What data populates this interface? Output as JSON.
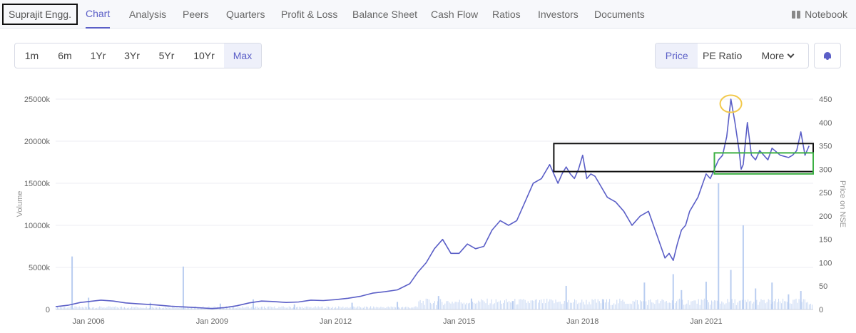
{
  "nav": {
    "company": "Suprajit Engg.",
    "tabs": [
      "Chart",
      "Analysis",
      "Peers",
      "Quarters",
      "Profit & Loss",
      "Balance Sheet",
      "Cash Flow",
      "Ratios",
      "Investors",
      "Documents"
    ],
    "active_tab": "Chart",
    "notebook_label": "Notebook"
  },
  "ranges": {
    "options": [
      "1m",
      "6m",
      "1Yr",
      "3Yr",
      "5Yr",
      "10Yr",
      "Max"
    ],
    "selected": "Max"
  },
  "metrics": {
    "price_label": "Price",
    "pe_label": "PE Ratio",
    "more_label": "More",
    "selected": "Price"
  },
  "icons": {
    "notebook": "book-icon",
    "more": "chevron-down-icon",
    "alert": "bell-icon"
  },
  "colors": {
    "accent": "#5b5fc7",
    "price_line": "#5b5fc7",
    "volume_bars": "#b9cdf0",
    "highlight_black": "#111111",
    "highlight_green": "#3cb043",
    "highlight_yellow": "#f2c94c"
  },
  "chart_data": {
    "type": "line",
    "xlabel": "",
    "ylabel_left": "Volume",
    "ylabel_right": "Price on NSE",
    "x_ticks": [
      "Jan 2006",
      "Jan 2009",
      "Jan 2012",
      "Jan 2015",
      "Jan 2018",
      "Jan 2021"
    ],
    "x_range": [
      2005.2,
      2023.6
    ],
    "volume_axis": {
      "ticks": [
        "0",
        "5000k",
        "10000k",
        "15000k",
        "20000k",
        "25000k"
      ],
      "ylim": [
        0,
        25000
      ]
    },
    "price_axis": {
      "ticks": [
        "0",
        "50",
        "100",
        "150",
        "200",
        "250",
        "300",
        "350",
        "400",
        "450"
      ],
      "ylim": [
        0,
        450
      ]
    },
    "grid": true,
    "legend": "none",
    "series": [
      {
        "axis": "right",
        "x": [
          2005.2,
          2005.5,
          2005.8,
          2006.0,
          2006.3,
          2006.6,
          2006.9,
          2007.2,
          2007.6,
          2008.0,
          2008.4,
          2008.8,
          2009.0,
          2009.3,
          2009.6,
          2009.9,
          2010.2,
          2010.5,
          2010.8,
          2011.1,
          2011.4,
          2011.7,
          2012.0,
          2012.3,
          2012.6,
          2012.9,
          2013.2,
          2013.5,
          2013.8,
          2014.0,
          2014.2,
          2014.4,
          2014.6,
          2014.8,
          2015.0,
          2015.2,
          2015.4,
          2015.6,
          2015.8,
          2016.0,
          2016.2,
          2016.4,
          2016.6,
          2016.8,
          2017.0,
          2017.2,
          2017.4,
          2017.5,
          2017.6,
          2017.7,
          2017.8,
          2017.9,
          2018.0,
          2018.1,
          2018.2,
          2018.3,
          2018.4,
          2018.6,
          2018.8,
          2019.0,
          2019.2,
          2019.4,
          2019.6,
          2019.8,
          2020.0,
          2020.1,
          2020.2,
          2020.3,
          2020.4,
          2020.5,
          2020.6,
          2020.8,
          2021.0,
          2021.1,
          2021.2,
          2021.3,
          2021.4,
          2021.5,
          2021.6,
          2021.7,
          2021.8,
          2021.85,
          2021.9,
          2022.0,
          2022.1,
          2022.2,
          2022.3,
          2022.4,
          2022.5,
          2022.6,
          2022.8,
          2023.0,
          2023.1,
          2023.2,
          2023.3,
          2023.4,
          2023.5
        ],
        "values": [
          6,
          9,
          15,
          17,
          20,
          18,
          14,
          12,
          10,
          7,
          5,
          3,
          2,
          4,
          8,
          14,
          18,
          17,
          15,
          16,
          20,
          19,
          21,
          24,
          28,
          35,
          38,
          42,
          55,
          80,
          100,
          130,
          150,
          120,
          120,
          140,
          130,
          135,
          170,
          190,
          180,
          190,
          230,
          270,
          280,
          310,
          270,
          290,
          305,
          290,
          280,
          300,
          330,
          280,
          290,
          285,
          270,
          240,
          230,
          210,
          180,
          200,
          210,
          160,
          110,
          120,
          105,
          140,
          170,
          180,
          210,
          240,
          290,
          280,
          300,
          320,
          330,
          370,
          450,
          400,
          340,
          300,
          310,
          400,
          330,
          320,
          340,
          330,
          320,
          345,
          330,
          325,
          330,
          340,
          380,
          330,
          350
        ]
      },
      {
        "axis": "left",
        "type": "bar",
        "x": [
          2005.6,
          2006.0,
          2007.5,
          2008.3,
          2009.2,
          2010.0,
          2011.0,
          2012.4,
          2013.5,
          2014.5,
          2015.3,
          2016.3,
          2017.6,
          2018.5,
          2019.5,
          2020.2,
          2020.4,
          2021.0,
          2021.3,
          2021.6,
          2021.9,
          2022.2,
          2022.6,
          2023.0,
          2023.3
        ],
        "values": [
          6300,
          1400,
          800,
          5100,
          700,
          1200,
          600,
          800,
          900,
          1600,
          1300,
          1000,
          2800,
          1200,
          3200,
          4200,
          2300,
          3300,
          15000,
          4700,
          10000,
          2500,
          3200,
          1800,
          2200
        ]
      }
    ]
  },
  "annotations": {
    "black_box": {
      "x_from": 2017.3,
      "x_to": 2023.6,
      "y_from": 295,
      "y_to": 355
    },
    "green_box": {
      "x_from": 2021.2,
      "x_to": 2023.6,
      "y_from": 290,
      "y_to": 335
    },
    "yellow_circle": {
      "x": 2021.6,
      "y": 440
    }
  }
}
